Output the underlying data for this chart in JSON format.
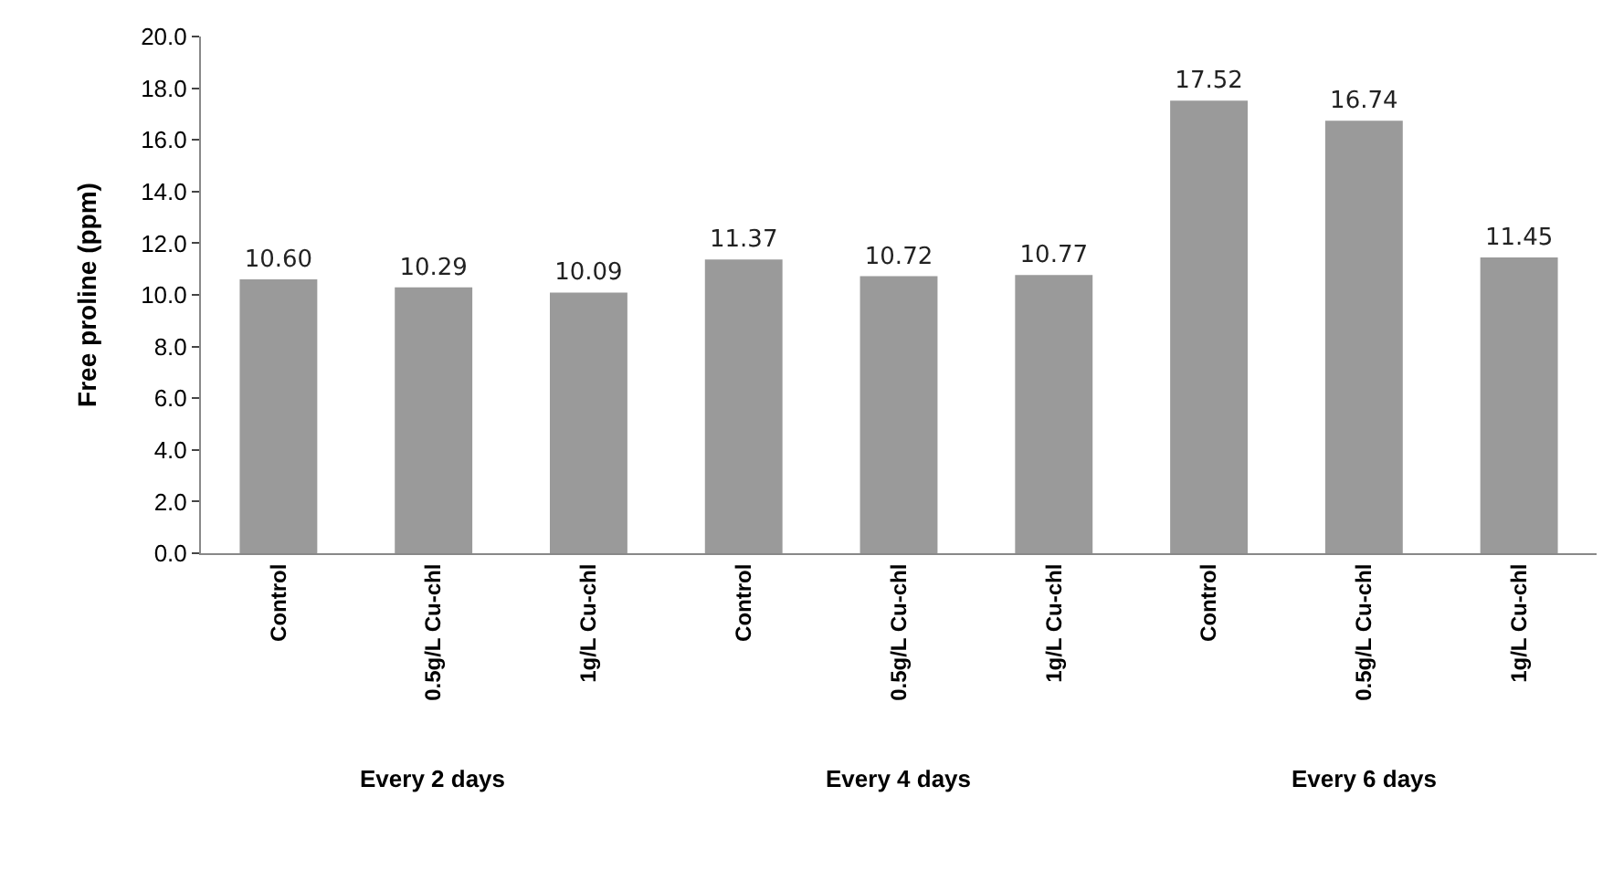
{
  "chart_data": {
    "type": "bar",
    "ylabel": "Free proline (ppm)",
    "categories": [
      "Control",
      "0.5g/L Cu-chl",
      "1g/L Cu-chl",
      "Control",
      "0.5g/L Cu-chl",
      "1g/L Cu-chl",
      "Control",
      "0.5g/L Cu-chl",
      "1g/L Cu-chl"
    ],
    "values": [
      10.6,
      10.29,
      10.09,
      11.37,
      10.72,
      10.77,
      17.52,
      16.74,
      11.45
    ],
    "value_labels": [
      "10.60",
      "10.29",
      "10.09",
      "11.37",
      "10.72",
      "10.77",
      "17.52",
      "16.74",
      "11.45"
    ],
    "color": "#9a9a9a",
    "ylim": [
      0,
      20
    ],
    "yticks": [
      {
        "value": 0,
        "label": "0.0"
      },
      {
        "value": 2,
        "label": "2.0"
      },
      {
        "value": 4,
        "label": "4.0"
      },
      {
        "value": 6,
        "label": "6.0"
      },
      {
        "value": 8,
        "label": "8.0"
      },
      {
        "value": 10,
        "label": "10.0"
      },
      {
        "value": 12,
        "label": "12.0"
      },
      {
        "value": 14,
        "label": "14.0"
      },
      {
        "value": 16,
        "label": "16.0"
      },
      {
        "value": 18,
        "label": "18.0"
      },
      {
        "value": 20,
        "label": "20.0"
      }
    ],
    "annotations": [
      "Every 2 days",
      "Every 4 days",
      "Every 6 days"
    ]
  }
}
